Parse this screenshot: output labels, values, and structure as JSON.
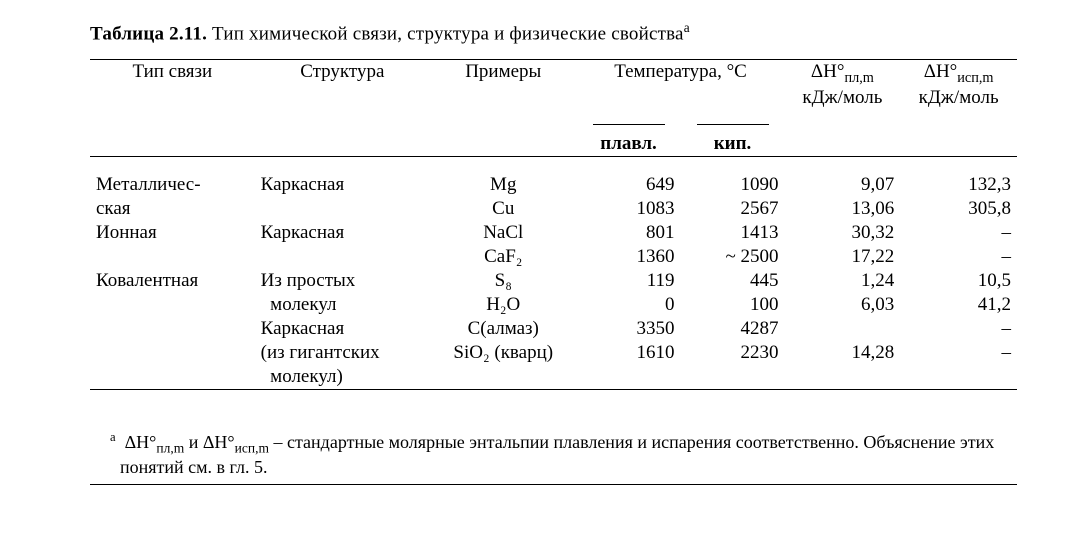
{
  "caption_prefix": "Таблица 2.11.",
  "caption_body": " Тип химической связи, структура и физические свойства",
  "caption_sup": "а",
  "headers": {
    "bond": "Тип связи",
    "structure": "Структура",
    "examples": "Примеры",
    "temp_group": "Температура, °C",
    "dH_fus": "ΔH°",
    "dH_fus_sub": "пл,m",
    "dH_vap": "ΔH°",
    "dH_vap_sub": "исп,m",
    "unit": "кДж/моль",
    "melt": "плавл.",
    "boil": "кип."
  },
  "rows": [
    {
      "bond": "Металличес-",
      "structure": "Каркасная",
      "ex": "Mg",
      "melt": "649",
      "boil": "1090",
      "fus": "9,07",
      "vap": "132,3"
    },
    {
      "bond": "ская",
      "structure": "",
      "ex": "Cu",
      "melt": "1083",
      "boil": "2567",
      "fus": "13,06",
      "vap": "305,8"
    },
    {
      "bond": "Ионная",
      "structure": "Каркасная",
      "ex": "NaCl",
      "melt": "801",
      "boil": "1413",
      "fus": "30,32",
      "vap": "–"
    },
    {
      "bond": "",
      "structure": "",
      "ex": "CaF₂",
      "melt": "1360",
      "boil": "~ 2500",
      "fus": "17,22",
      "vap": "–"
    },
    {
      "bond": "Ковалентная",
      "structure": "Из простых",
      "ex": "S₈",
      "melt": "119",
      "boil": "445",
      "fus": "1,24",
      "vap": "10,5"
    },
    {
      "bond": "",
      "structure": "  молекул",
      "ex": "H₂O",
      "melt": "0",
      "boil": "100",
      "fus": "6,03",
      "vap": "41,2"
    },
    {
      "bond": "",
      "structure": "Каркасная",
      "ex": "C(алмаз)",
      "melt": "3350",
      "boil": "4287",
      "fus": "",
      "vap": "–"
    },
    {
      "bond": "",
      "structure": "(из гигантских",
      "ex": "SiO₂ (кварц)",
      "melt": "1610",
      "boil": "2230",
      "fus": "14,28",
      "vap": "–"
    },
    {
      "bond": "",
      "structure": "  молекул)",
      "ex": "",
      "melt": "",
      "boil": "",
      "fus": "",
      "vap": ""
    }
  ],
  "footnote_sup": "а",
  "footnote_body_1": "ΔH°",
  "footnote_sub_1": "пл,m",
  "footnote_and": " и ",
  "footnote_body_2": "ΔH°",
  "footnote_sub_2": "исп,m",
  "footnote_rest": " – стандартные молярные энтальпии плавления и испарения соответствен­но. Объяснение этих понятий см. в гл. 5.",
  "colors": {
    "text": "#000000",
    "bg": "#ffffff",
    "rule": "#000000"
  },
  "font_family": "Times New Roman",
  "font_size_body": 19,
  "font_size_foot": 18
}
